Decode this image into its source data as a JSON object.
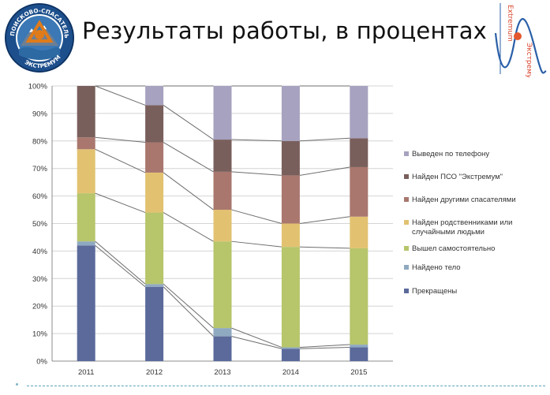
{
  "slide": {
    "title": "Результаты работы, в процентах",
    "logo_left": {
      "icon": "rescue-emblem-icon",
      "text": "ПОИСКОВО-СПАСАТЕЛЬНЫЙ ОТРЯД ЭКСТРЕМУМ",
      "colors": {
        "ring": "#1d4f8c",
        "triangle": "#e07b1a",
        "mountains": "#6d7f94",
        "water": "#3b78b5"
      }
    },
    "logo_right": {
      "icon": "extremum-graph-icon",
      "text_left": "Extremum",
      "text_right": "Экстремум",
      "colors": {
        "text": "#d8432b",
        "curve": "#2a5fa8",
        "dot": "#e4572e"
      }
    }
  },
  "chart_data": {
    "type": "bar",
    "stacked": true,
    "normalized_percent": true,
    "categories": [
      "2011",
      "2012",
      "2013",
      "2014",
      "2015"
    ],
    "y_ticks": [
      "0%",
      "10%",
      "20%",
      "30%",
      "40%",
      "50%",
      "60%",
      "70%",
      "80%",
      "90%",
      "100%"
    ],
    "ylim": [
      0,
      100
    ],
    "grid": true,
    "legend_position": "right",
    "series_lines": true,
    "series": [
      {
        "name": "Прекращены",
        "color": "#5b6a9b",
        "values": [
          42,
          27,
          9,
          4.5,
          5
        ]
      },
      {
        "name": "Найдено тело",
        "color": "#8fa9c1",
        "values": [
          1.5,
          1,
          3,
          0.5,
          1
        ]
      },
      {
        "name": "Вышел самостоятельно",
        "color": "#b7c56b",
        "values": [
          17.5,
          26,
          31.5,
          36.5,
          35
        ]
      },
      {
        "name": "Найден родственниками или случайными людьми",
        "color": "#e2c271",
        "values": [
          16,
          14.5,
          11.5,
          8.5,
          11.5
        ]
      },
      {
        "name": "Найден другими спасателями",
        "color": "#a9776e",
        "values": [
          4.3,
          11,
          13.8,
          17.5,
          18
        ]
      },
      {
        "name": "Найден ПСО \"Экстремум\"",
        "color": "#795f5c",
        "values": [
          18.7,
          13.5,
          11.7,
          12.5,
          10.5
        ]
      },
      {
        "name": "Выведен по телефону",
        "color": "#a6a2bf",
        "values": [
          0,
          7,
          19.5,
          20,
          19
        ]
      }
    ]
  }
}
